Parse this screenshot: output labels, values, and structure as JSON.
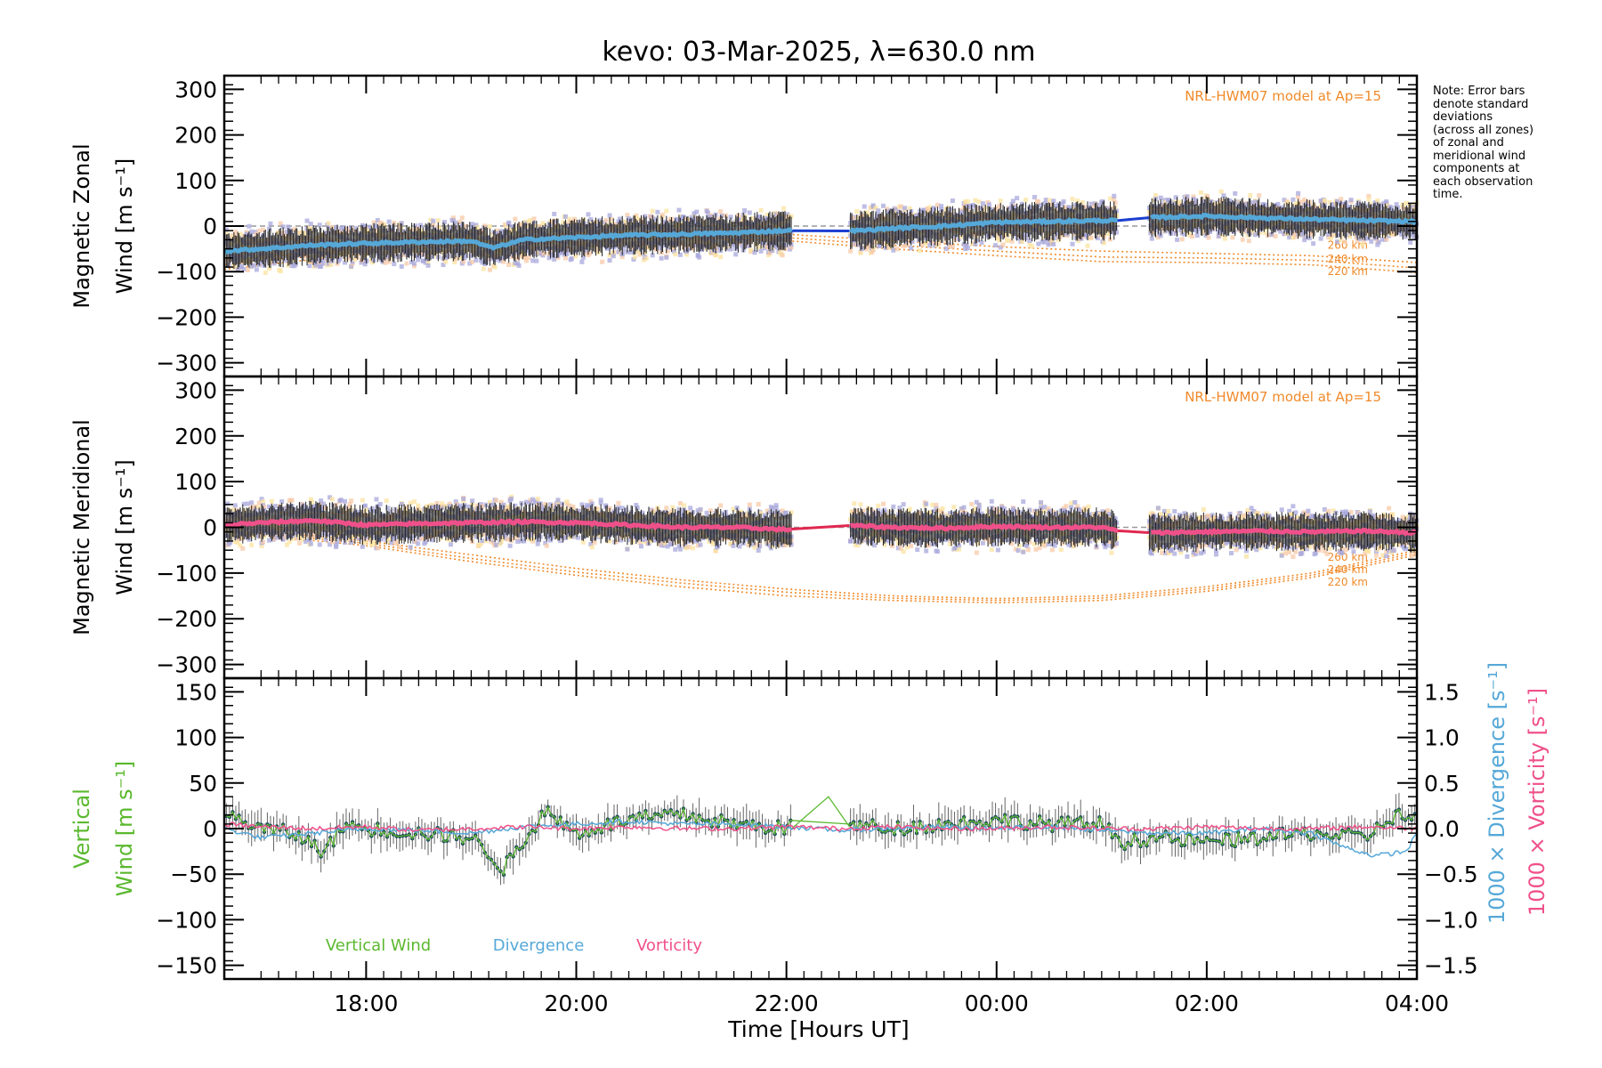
{
  "chart_data": [
    {
      "type": "line",
      "title": "kevo: 03-Mar-2025, λ=630.0 nm",
      "ylabel_line1": "Magnetic Zonal",
      "ylabel_line2": "Wind [m s⁻¹]",
      "ylim": [
        -330,
        330
      ],
      "yticks": [
        -300,
        -200,
        -100,
        0,
        100,
        200,
        300
      ],
      "xlim": [
        16.65,
        28.0
      ],
      "model_label": "NRL-HWM07 model at Ap=15",
      "model_altitudes": [
        "260 km",
        "240 km",
        "220 km"
      ],
      "series": [
        {
          "name": "Zonal wind (all-zone mean)",
          "color": "#55a8d8",
          "x": [
            16.65,
            17.0,
            17.5,
            18.0,
            18.5,
            19.0,
            19.2,
            19.5,
            20.0,
            20.5,
            21.0,
            21.5,
            22.0,
            22.4,
            22.7,
            23.0,
            23.5,
            24.0,
            24.5,
            25.0,
            25.2,
            25.4,
            26.0,
            26.5,
            27.0,
            27.5,
            28.0
          ],
          "y": [
            -55,
            -50,
            -42,
            -38,
            -35,
            -33,
            -48,
            -30,
            -25,
            -20,
            -18,
            -15,
            -10,
            -12,
            -10,
            -5,
            0,
            8,
            10,
            12,
            12,
            18,
            22,
            18,
            15,
            12,
            10
          ]
        },
        {
          "name": "HWM07 220 km",
          "color": "#f08a2a",
          "x": [
            16.65,
            18,
            19,
            20,
            21,
            22,
            23,
            24,
            25,
            26,
            27,
            28
          ],
          "y": [
            -95,
            -60,
            -40,
            -28,
            -25,
            -32,
            -50,
            -65,
            -78,
            -80,
            -85,
            -102
          ]
        },
        {
          "name": "HWM07 240 km",
          "color": "#f08a2a",
          "x": [
            16.65,
            18,
            19,
            20,
            21,
            22,
            23,
            24,
            25,
            26,
            27,
            28
          ],
          "y": [
            -85,
            -55,
            -35,
            -22,
            -18,
            -25,
            -42,
            -55,
            -68,
            -70,
            -75,
            -92
          ]
        },
        {
          "name": "HWM07 260 km",
          "color": "#f08a2a",
          "x": [
            16.65,
            18,
            19,
            20,
            21,
            22,
            23,
            24,
            25,
            26,
            27,
            28
          ],
          "y": [
            -75,
            -50,
            -30,
            -15,
            -12,
            -18,
            -32,
            -45,
            -55,
            -60,
            -65,
            -80
          ]
        }
      ]
    },
    {
      "type": "line",
      "ylabel_line1": "Magnetic Meridional",
      "ylabel_line2": "Wind [m s⁻¹]",
      "ylim": [
        -330,
        330
      ],
      "yticks": [
        -300,
        -200,
        -100,
        0,
        100,
        200,
        300
      ],
      "xlim": [
        16.65,
        28.0
      ],
      "model_label": "NRL-HWM07 model at Ap=15",
      "model_altitudes": [
        "260 km",
        "240 km",
        "220 km"
      ],
      "series": [
        {
          "name": "Meridional wind (all-zone mean)",
          "color": "#f0508a",
          "x": [
            16.65,
            17.0,
            17.5,
            18.0,
            18.5,
            19.0,
            19.5,
            20.0,
            20.5,
            21.0,
            21.5,
            22.0,
            22.5,
            23.0,
            23.5,
            24.0,
            24.5,
            25.0,
            25.2,
            25.5,
            26.0,
            26.5,
            27.0,
            27.5,
            28.0
          ],
          "y": [
            5,
            10,
            15,
            5,
            8,
            10,
            12,
            10,
            5,
            0,
            0,
            -5,
            5,
            0,
            -2,
            2,
            0,
            0,
            -10,
            -12,
            -10,
            -8,
            -10,
            -8,
            -12
          ]
        },
        {
          "name": "HWM07 220 km",
          "color": "#f08a2a",
          "x": [
            16.65,
            18,
            19,
            20,
            21,
            22,
            23,
            24,
            25,
            26,
            27,
            28
          ],
          "y": [
            -10,
            -40,
            -75,
            -105,
            -130,
            -150,
            -160,
            -165,
            -160,
            -140,
            -110,
            -60
          ]
        },
        {
          "name": "HWM07 240 km",
          "color": "#f08a2a",
          "x": [
            16.65,
            18,
            19,
            20,
            21,
            22,
            23,
            24,
            25,
            26,
            27,
            28
          ],
          "y": [
            -5,
            -35,
            -68,
            -98,
            -122,
            -142,
            -155,
            -160,
            -155,
            -135,
            -105,
            -55
          ]
        },
        {
          "name": "HWM07 260 km",
          "color": "#f08a2a",
          "x": [
            16.65,
            18,
            19,
            20,
            21,
            22,
            23,
            24,
            25,
            26,
            27,
            28
          ],
          "y": [
            0,
            -30,
            -60,
            -90,
            -115,
            -135,
            -150,
            -156,
            -150,
            -130,
            -100,
            -50
          ]
        }
      ]
    },
    {
      "type": "line",
      "ylabel_line1": "Vertical",
      "ylabel_line2": "Wind [m s⁻¹]",
      "ylim": [
        -165,
        165
      ],
      "yticks": [
        -150,
        -100,
        -50,
        0,
        50,
        100,
        150
      ],
      "y2lim": [
        -1.65,
        1.65
      ],
      "y2ticks": [
        -1.5,
        -1.0,
        -0.5,
        0.0,
        0.5,
        1.0,
        1.5
      ],
      "y2label_div": "1000 × Divergence [s⁻¹]",
      "y2label_vort": "1000 × Vorticity [s⁻¹]",
      "xlim": [
        16.65,
        28.0
      ],
      "xticks": [
        18,
        20,
        22,
        24,
        26,
        28
      ],
      "xticklabels": [
        "18:00",
        "20:00",
        "22:00",
        "00:00",
        "02:00",
        "04:00"
      ],
      "xlabel": "Time [Hours UT]",
      "legend": [
        "Vertical Wind",
        "Divergence",
        "Vorticity"
      ],
      "series": [
        {
          "name": "Vertical Wind",
          "color": "#5ab82e",
          "x": [
            16.65,
            16.8,
            17.0,
            17.3,
            17.6,
            17.8,
            18.0,
            18.5,
            19.0,
            19.2,
            19.3,
            19.5,
            19.7,
            20.0,
            20.5,
            21.0,
            21.5,
            22.0,
            22.3,
            22.4,
            22.6,
            23.0,
            23.5,
            24.0,
            24.5,
            25.0,
            25.2,
            25.5,
            26.0,
            26.5,
            27.0,
            27.5,
            27.8,
            28.0
          ],
          "y": [
            15,
            10,
            0,
            -5,
            -25,
            5,
            0,
            -5,
            -10,
            -30,
            -45,
            -15,
            20,
            -5,
            10,
            15,
            5,
            0,
            20,
            35,
            5,
            0,
            5,
            10,
            5,
            5,
            -15,
            -10,
            -15,
            -10,
            -5,
            -10,
            15,
            10
          ]
        },
        {
          "name": "Divergence",
          "color": "#55a8d8",
          "axis": "y2",
          "x": [
            16.65,
            17.0,
            17.5,
            18.0,
            18.5,
            19.0,
            19.5,
            20.0,
            20.5,
            21.0,
            21.5,
            22.0,
            22.5,
            23.0,
            23.5,
            24.0,
            24.5,
            25.0,
            25.5,
            26.0,
            26.5,
            27.0,
            27.3,
            27.6,
            27.9,
            28.0
          ],
          "y": [
            0.0,
            -0.1,
            -0.05,
            0.0,
            -0.02,
            -0.05,
            0.02,
            0.05,
            0.08,
            0.05,
            0.05,
            0.02,
            -0.02,
            0.0,
            0.02,
            0.0,
            0.02,
            -0.02,
            -0.05,
            -0.05,
            0.0,
            -0.05,
            -0.2,
            -0.3,
            -0.25,
            -0.05
          ]
        },
        {
          "name": "Vorticity",
          "color": "#f0508a",
          "axis": "y2",
          "x": [
            16.65,
            17.0,
            17.5,
            18.0,
            18.5,
            19.0,
            19.5,
            20.0,
            20.5,
            21.0,
            21.5,
            22.0,
            22.5,
            23.0,
            23.5,
            24.0,
            24.5,
            25.0,
            25.5,
            26.0,
            26.5,
            27.0,
            27.5,
            28.0
          ],
          "y": [
            0.05,
            0.02,
            0.0,
            0.02,
            -0.02,
            0.0,
            0.02,
            0.0,
            0.02,
            0.0,
            0.0,
            0.02,
            0.0,
            0.02,
            0.0,
            0.0,
            0.02,
            0.0,
            0.0,
            0.02,
            0.0,
            0.0,
            0.02,
            0.0
          ]
        }
      ]
    }
  ],
  "note": {
    "lines": [
      "Note: Error bars",
      "denote standard",
      "deviations",
      "(across all zones)",
      "of zonal and",
      "meridional wind",
      "components at",
      "each observation",
      "time."
    ]
  },
  "colors": {
    "zonal": "#55a8d8",
    "meridional": "#f0508a",
    "vertical": "#5ab82e",
    "divergence": "#55a8d8",
    "vorticity": "#f0508a",
    "model": "#f08a2a",
    "zone_scatter": "#a8a8dc",
    "gap_zonal": "#1c3fd0",
    "gap_meridional": "#e02850"
  }
}
